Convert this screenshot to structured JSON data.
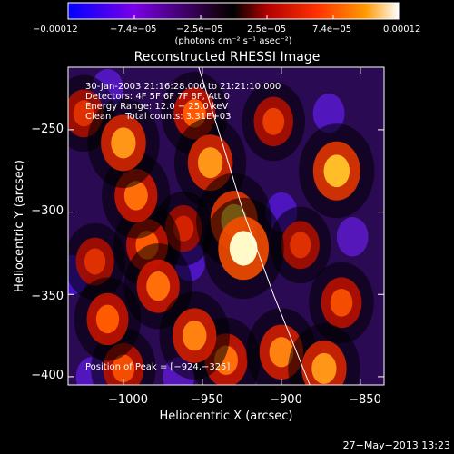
{
  "chart_data": {
    "type": "heatmap",
    "title": "Reconstructed RHESSI Image",
    "xlabel": "Heliocentric X (arcsec)",
    "ylabel": "Heliocentric Y (arcsec)",
    "xlim": [
      -1035,
      -835
    ],
    "ylim": [
      -405,
      -212
    ],
    "x_ticks": [
      -1000,
      -950,
      -900,
      -850
    ],
    "x_tick_labels": [
      "−1000",
      "−950",
      "−900",
      "−850"
    ],
    "y_ticks": [
      -400,
      -350,
      -300,
      -250
    ],
    "y_tick_labels": [
      "−400",
      "−350",
      "−300",
      "−250"
    ],
    "colorbar": {
      "min": -0.00012,
      "max": 0.00012,
      "tick_labels": [
        "−0.00012",
        "−7.4e−05",
        "−2.5e−05",
        "2.5e−05",
        "7.4e−05",
        "0.00012"
      ],
      "units": "(photons cm⁻² s⁻¹ asec⁻²)",
      "colors": [
        "#0000ff",
        "#7a00e6",
        "#1a001a",
        "#000000",
        "#b00000",
        "#ff3000",
        "#ff9a00",
        "#ffffff"
      ]
    },
    "info_lines": [
      "30-Jan-2003 21:16:28.000 to 21:21:10.000",
      "Detectors: 4F 5F 6F 7F 8F, Att 0",
      "Energy Range: 12.0 − 25.0 keV",
      "Clean     Total counts: 3.31E+03"
    ],
    "peak_label": "Position of Peak = [−924,−325]",
    "peak": [
      -924,
      -325
    ],
    "limb_curve": [
      [
        -953,
        -210
      ],
      [
        -940,
        -250
      ],
      [
        -924,
        -300
      ],
      [
        -905,
        -350
      ],
      [
        -882,
        -405
      ]
    ],
    "blobs": [
      {
        "x": -924,
        "y": -322,
        "v": 1.0
      },
      {
        "x": -930,
        "y": -305,
        "v": 0.85
      },
      {
        "x": -945,
        "y": -270,
        "v": 0.75
      },
      {
        "x": -955,
        "y": -240,
        "v": 0.6
      },
      {
        "x": -1000,
        "y": -258,
        "v": 0.75
      },
      {
        "x": -992,
        "y": -290,
        "v": 0.65
      },
      {
        "x": -985,
        "y": -320,
        "v": 0.6
      },
      {
        "x": -1018,
        "y": -330,
        "v": 0.45
      },
      {
        "x": -978,
        "y": -345,
        "v": 0.65
      },
      {
        "x": -955,
        "y": -375,
        "v": 0.7
      },
      {
        "x": -1010,
        "y": -365,
        "v": 0.6
      },
      {
        "x": -1000,
        "y": -395,
        "v": 0.55
      },
      {
        "x": -935,
        "y": -390,
        "v": 0.65
      },
      {
        "x": -900,
        "y": -385,
        "v": 0.7
      },
      {
        "x": -873,
        "y": -395,
        "v": 0.75
      },
      {
        "x": -865,
        "y": -275,
        "v": 0.85
      },
      {
        "x": -862,
        "y": -355,
        "v": 0.55
      },
      {
        "x": -905,
        "y": -245,
        "v": 0.5
      },
      {
        "x": -888,
        "y": -320,
        "v": 0.45
      },
      {
        "x": -1025,
        "y": -240,
        "v": 0.45
      },
      {
        "x": -962,
        "y": -310,
        "v": 0.4
      },
      {
        "x": -1020,
        "y": -400,
        "v": -0.35
      },
      {
        "x": -870,
        "y": -240,
        "v": -0.35
      },
      {
        "x": -900,
        "y": -300,
        "v": -0.4
      },
      {
        "x": -958,
        "y": -330,
        "v": -0.4
      },
      {
        "x": -1010,
        "y": -225,
        "v": -0.35
      },
      {
        "x": -855,
        "y": -315,
        "v": -0.3
      },
      {
        "x": -1032,
        "y": -338,
        "v": -0.5
      },
      {
        "x": -965,
        "y": -400,
        "v": -0.3
      }
    ]
  },
  "footer_timestamp": "27−May−2013 13:23"
}
